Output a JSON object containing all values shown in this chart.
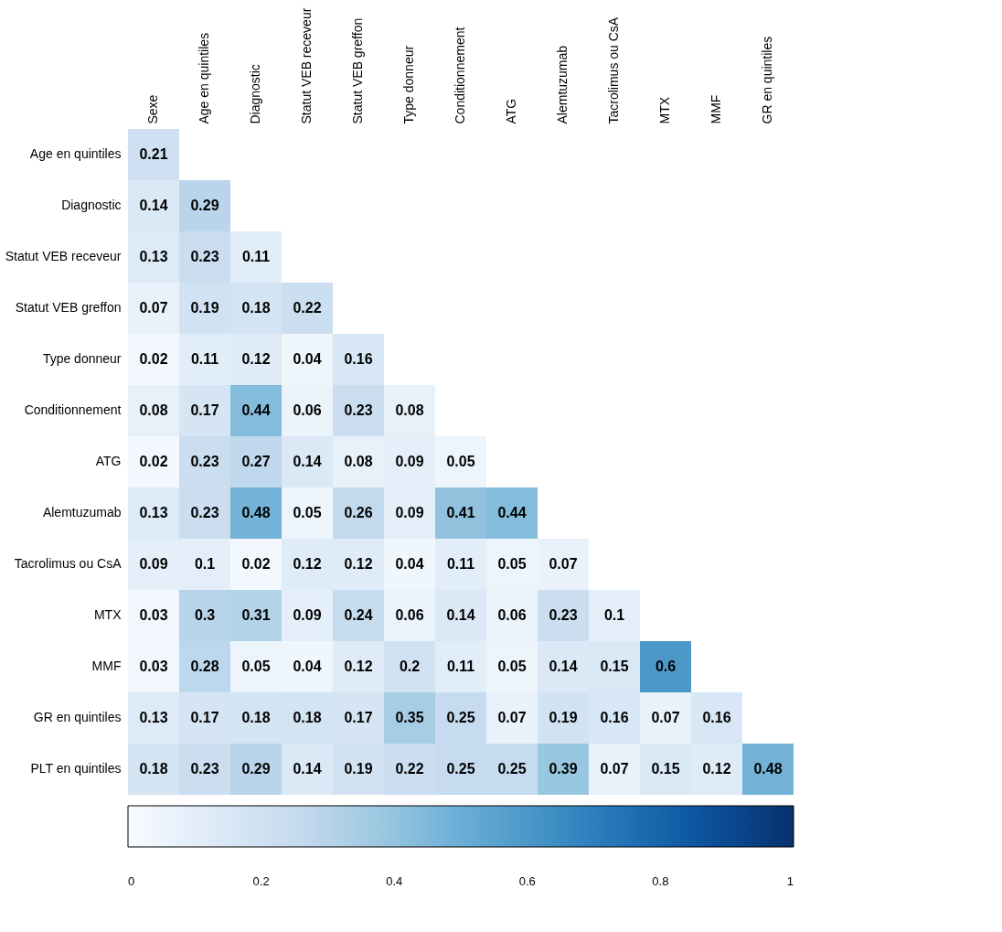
{
  "chart_data": {
    "type": "heatmap",
    "categories": [
      "Sexe",
      "Age en quintiles",
      "Diagnostic",
      "Statut VEB receveur",
      "Statut VEB greffon",
      "Type donneur",
      "Conditionnement",
      "ATG",
      "Alemtuzumab",
      "Tacrolimus ou CsA",
      "MTX",
      "MMF",
      "GR en quintiles"
    ],
    "y_categories": [
      "Age en quintiles",
      "Diagnostic",
      "Statut VEB receveur",
      "Statut VEB greffon",
      "Type donneur",
      "Conditionnement",
      "ATG",
      "Alemtuzumab",
      "Tacrolimus ou CsA",
      "MTX",
      "MMF",
      "GR en quintiles",
      "PLT en quintiles"
    ],
    "cells": [
      [
        0.21,
        null,
        null,
        null,
        null,
        null,
        null,
        null,
        null,
        null,
        null,
        null,
        null
      ],
      [
        0.14,
        0.29,
        null,
        null,
        null,
        null,
        null,
        null,
        null,
        null,
        null,
        null,
        null
      ],
      [
        0.13,
        0.23,
        0.11,
        null,
        null,
        null,
        null,
        null,
        null,
        null,
        null,
        null,
        null
      ],
      [
        0.07,
        0.19,
        0.18,
        0.22,
        null,
        null,
        null,
        null,
        null,
        null,
        null,
        null,
        null
      ],
      [
        0.02,
        0.11,
        0.12,
        0.04,
        0.16,
        null,
        null,
        null,
        null,
        null,
        null,
        null,
        null
      ],
      [
        0.08,
        0.17,
        0.44,
        0.06,
        0.23,
        0.08,
        null,
        null,
        null,
        null,
        null,
        null,
        null
      ],
      [
        0.02,
        0.23,
        0.27,
        0.14,
        0.08,
        0.09,
        0.05,
        null,
        null,
        null,
        null,
        null,
        null
      ],
      [
        0.13,
        0.23,
        0.48,
        0.05,
        0.26,
        0.09,
        0.41,
        0.44,
        null,
        null,
        null,
        null,
        null
      ],
      [
        0.09,
        0.1,
        0.02,
        0.12,
        0.12,
        0.04,
        0.11,
        0.05,
        0.07,
        null,
        null,
        null,
        null
      ],
      [
        0.03,
        0.3,
        0.31,
        0.09,
        0.24,
        0.06,
        0.14,
        0.06,
        0.23,
        0.1,
        null,
        null,
        null
      ],
      [
        0.03,
        0.28,
        0.05,
        0.04,
        0.12,
        0.2,
        0.11,
        0.05,
        0.14,
        0.15,
        0.6,
        null,
        null
      ],
      [
        0.13,
        0.17,
        0.18,
        0.18,
        0.17,
        0.35,
        0.25,
        0.07,
        0.19,
        0.16,
        0.07,
        0.16,
        null
      ],
      [
        0.18,
        0.23,
        0.29,
        0.14,
        0.19,
        0.22,
        0.25,
        0.25,
        0.39,
        0.07,
        0.15,
        0.12,
        0.48
      ]
    ],
    "clim": [
      0,
      1
    ],
    "cticks": [
      0,
      0.2,
      0.4,
      0.6,
      0.8,
      1
    ],
    "data_labels": true,
    "grid": false
  }
}
